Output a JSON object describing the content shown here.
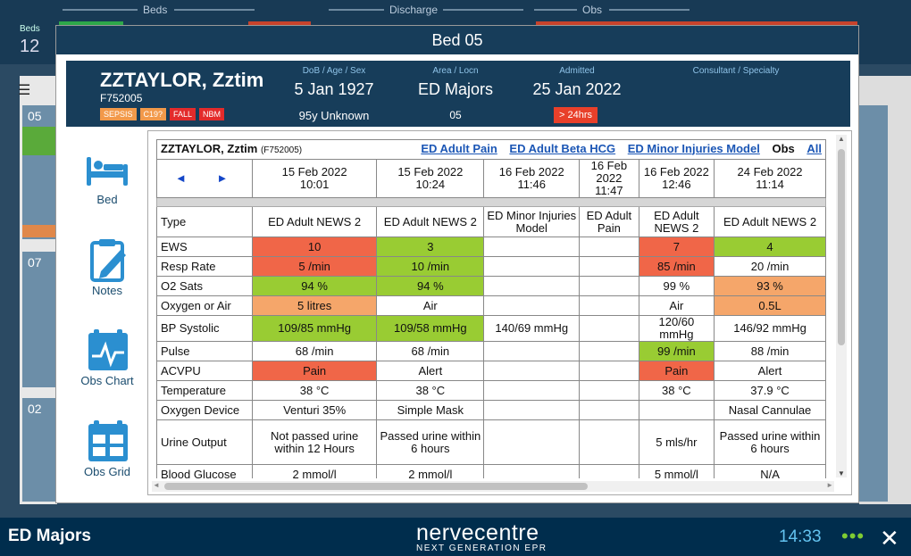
{
  "top": {
    "beds": "Beds",
    "discharge": "Discharge",
    "obs": "Obs",
    "beds_label": "Beds",
    "beds_count": "12"
  },
  "side_bays": [
    "05",
    "07",
    "02"
  ],
  "modal": {
    "title": "Bed 05"
  },
  "patient": {
    "name": "ZZTAYLOR, Zztim",
    "id": "F752005",
    "tags": [
      {
        "text": "SEPSIS",
        "color": "#f2994a"
      },
      {
        "text": "C19?",
        "color": "#f2994a"
      },
      {
        "text": "FALL",
        "color": "#e32b2b"
      },
      {
        "text": "NBM",
        "color": "#e32b2b"
      }
    ],
    "dob_label": "DoB / Age / Sex",
    "dob": "5 Jan 1927",
    "age_sex": "95y Unknown",
    "area_label": "Area / Locn",
    "area": "ED Majors",
    "locn": "05",
    "admitted_label": "Admitted",
    "admitted": "25 Jan 2022",
    "los": "> 24hrs",
    "consultant_label": "Consultant / Specialty"
  },
  "nav": {
    "bed": "Bed",
    "notes": "Notes",
    "obs_chart": "Obs Chart",
    "obs_grid": "Obs Grid"
  },
  "grid": {
    "patient": "ZZTAYLOR, Zztim",
    "patient_id": "(F752005)",
    "links": [
      "ED Adult Pain",
      "ED Adult Beta HCG",
      "ED Minor Injuries Model"
    ],
    "obs": "Obs",
    "all": "All",
    "prev": "◄",
    "next": "►",
    "dates": [
      [
        "15 Feb 2022",
        "10:01"
      ],
      [
        "15 Feb 2022",
        "10:24"
      ],
      [
        "16 Feb 2022",
        "11:46"
      ],
      [
        "16 Feb 2022",
        "11:47"
      ],
      [
        "16 Feb 2022",
        "12:46"
      ],
      [
        "24 Feb 2022",
        "11:14"
      ]
    ],
    "rows": [
      {
        "label": "Type",
        "cells": [
          [
            "ED Adult NEWS 2",
            ""
          ],
          [
            "ED Adult NEWS 2",
            ""
          ],
          [
            "ED Minor Injuries Model",
            ""
          ],
          [
            "ED Adult Pain",
            ""
          ],
          [
            "ED Adult NEWS 2",
            ""
          ],
          [
            "ED Adult NEWS 2",
            ""
          ]
        ]
      },
      {
        "label": "EWS",
        "cells": [
          [
            "10",
            "red"
          ],
          [
            "3",
            "grn"
          ],
          [
            "",
            ""
          ],
          [
            "",
            ""
          ],
          [
            "7",
            "red"
          ],
          [
            "4",
            "grn"
          ]
        ]
      },
      {
        "label": "Resp Rate",
        "cells": [
          [
            "5 /min",
            "red"
          ],
          [
            "10 /min",
            "grn"
          ],
          [
            "",
            ""
          ],
          [
            "",
            ""
          ],
          [
            "85 /min",
            "red"
          ],
          [
            "20 /min",
            ""
          ]
        ]
      },
      {
        "label": "O2 Sats",
        "cells": [
          [
            "94 %",
            "grn"
          ],
          [
            "94 %",
            "grn"
          ],
          [
            "",
            ""
          ],
          [
            "",
            ""
          ],
          [
            "99 %",
            ""
          ],
          [
            "93 %",
            "org"
          ]
        ]
      },
      {
        "label": "Oxygen or Air",
        "cells": [
          [
            "5 litres",
            "org"
          ],
          [
            "Air",
            ""
          ],
          [
            "",
            ""
          ],
          [
            "",
            ""
          ],
          [
            "Air",
            ""
          ],
          [
            "0.5L",
            "org"
          ]
        ]
      },
      {
        "label": "BP Systolic",
        "cells": [
          [
            "109/85 mmHg",
            "grn"
          ],
          [
            "109/58 mmHg",
            "grn"
          ],
          [
            "140/69 mmHg",
            ""
          ],
          [
            "",
            ""
          ],
          [
            "120/60 mmHg",
            ""
          ],
          [
            "146/92 mmHg",
            ""
          ]
        ]
      },
      {
        "label": "Pulse",
        "cells": [
          [
            "68 /min",
            ""
          ],
          [
            "68 /min",
            ""
          ],
          [
            "",
            ""
          ],
          [
            "",
            ""
          ],
          [
            "99 /min",
            "grn"
          ],
          [
            "88 /min",
            ""
          ]
        ]
      },
      {
        "label": "ACVPU",
        "cells": [
          [
            "Pain",
            "red"
          ],
          [
            "Alert",
            ""
          ],
          [
            "",
            ""
          ],
          [
            "",
            ""
          ],
          [
            "Pain",
            "red"
          ],
          [
            "Alert",
            ""
          ]
        ]
      },
      {
        "label": "Temperature",
        "cells": [
          [
            "38 °C",
            ""
          ],
          [
            "38 °C",
            ""
          ],
          [
            "",
            ""
          ],
          [
            "",
            ""
          ],
          [
            "38 °C",
            ""
          ],
          [
            "37.9 °C",
            ""
          ]
        ]
      },
      {
        "label": "Oxygen Device",
        "cells": [
          [
            "Venturi 35%",
            ""
          ],
          [
            "Simple Mask",
            ""
          ],
          [
            "",
            ""
          ],
          [
            "",
            ""
          ],
          [
            "",
            ""
          ],
          [
            "Nasal Cannulae",
            ""
          ]
        ]
      },
      {
        "label": "Urine Output",
        "cells": [
          [
            "Not passed urine within 12 Hours",
            ""
          ],
          [
            "Passed urine within 6 hours",
            ""
          ],
          [
            "",
            ""
          ],
          [
            "",
            ""
          ],
          [
            "5 mls/hr",
            ""
          ],
          [
            "Passed urine within 6 hours",
            ""
          ]
        ]
      },
      {
        "label": "Blood Glucose",
        "cells": [
          [
            "2 mmol/l",
            ""
          ],
          [
            "2 mmol/l",
            ""
          ],
          [
            "",
            ""
          ],
          [
            "",
            ""
          ],
          [
            "5 mmol/l",
            ""
          ],
          [
            "N/A",
            ""
          ]
        ]
      }
    ]
  },
  "footer": {
    "ward": "ED Majors",
    "logo": "nervecentre",
    "tagline": "NEXT GENERATION EPR",
    "time": "14:33",
    "more": "•••",
    "close": "✕"
  },
  "colors": {
    "navy": "#173d5a",
    "red": "#f06648",
    "green": "#99cc33",
    "orange": "#f5a66a"
  }
}
